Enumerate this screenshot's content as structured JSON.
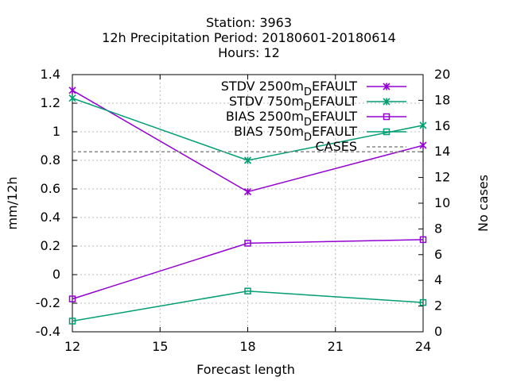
{
  "chart_data": {
    "type": "line",
    "title_lines": [
      "Station:      3963",
      "12h Precipitation   Period: 20180601-20180614",
      "Hours:  12"
    ],
    "xlabel": "Forecast length",
    "ylabel": "mm/12h",
    "y2label": "No cases",
    "x": [
      12,
      18,
      24
    ],
    "xticks": [
      "12",
      "15",
      "18",
      "21",
      "24"
    ],
    "xlim": [
      12,
      24
    ],
    "ylim": [
      -0.4,
      1.4
    ],
    "yticks": [
      "-0.4",
      "-0.2",
      "0",
      "0.2",
      "0.4",
      "0.6",
      "0.8",
      "1",
      "1.2",
      "1.4"
    ],
    "y2lim": [
      0,
      20
    ],
    "y2ticks": [
      "0",
      "2",
      "4",
      "6",
      "8",
      "10",
      "12",
      "14",
      "16",
      "18",
      "20"
    ],
    "grid": true,
    "legend_position": "top-right",
    "series": [
      {
        "name": "STDV 2500m",
        "suffix": "EFAULT",
        "sub": "D",
        "axis": "y1",
        "color": "#9400d3",
        "marker": "x",
        "values": [
          1.29,
          0.58,
          0.905
        ]
      },
      {
        "name": "STDV 750m",
        "suffix": "EFAULT",
        "sub": "D",
        "axis": "y1",
        "color": "#009e73",
        "marker": "x",
        "values": [
          1.235,
          0.8,
          1.045
        ]
      },
      {
        "name": "BIAS 2500m",
        "suffix": "EFAULT",
        "sub": "D",
        "axis": "y1",
        "color": "#9400d3",
        "marker": "square",
        "values": [
          -0.17,
          0.22,
          0.245
        ]
      },
      {
        "name": "BIAS 750m",
        "suffix": "EFAULT",
        "sub": "D",
        "axis": "y1",
        "color": "#009e73",
        "marker": "square",
        "values": [
          -0.325,
          -0.115,
          -0.195
        ]
      },
      {
        "name": "CASES",
        "suffix": "",
        "sub": "",
        "axis": "y2",
        "color": "#888888",
        "marker": "none",
        "dashed": true,
        "values": [
          14,
          14,
          14
        ]
      }
    ]
  }
}
